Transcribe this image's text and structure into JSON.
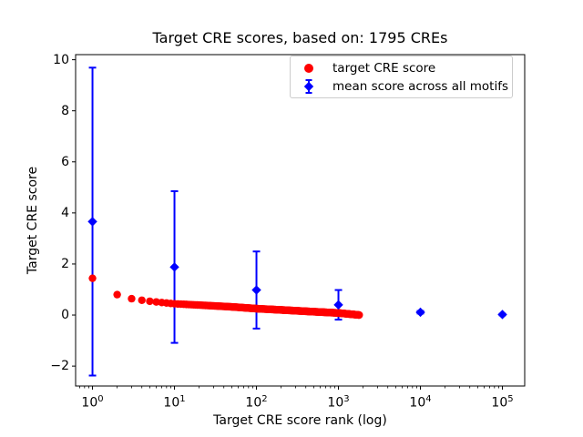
{
  "figure": {
    "title": "Target CRE scores, based on: 1795 CREs",
    "xlabel": "Target CRE score rank (log)",
    "ylabel": "Target CRE score"
  },
  "colors": {
    "target_series": "#ff0000",
    "mean_series": "#0000ff",
    "axis": "#000000",
    "text": "#000000",
    "legend_border": "#cccccc",
    "background": "#ffffff"
  },
  "legend": {
    "items": [
      {
        "label": "target CRE score",
        "marker": "circle-icon",
        "color": "#ff0000"
      },
      {
        "label": "mean score across all motifs",
        "marker": "diamond-errorbar-icon",
        "color": "#0000ff"
      }
    ]
  },
  "chart_data": {
    "type": "scatter",
    "title": "Target CRE scores, based on: 1795 CREs",
    "xlabel": "Target CRE score rank (log)",
    "ylabel": "Target CRE score",
    "x_scale": "log",
    "grid": false,
    "legend_position": "upper right",
    "xlim_log10": [
      -0.206,
      5.272
    ],
    "ylim": [
      -2.78,
      10.2
    ],
    "x_ticks": [
      {
        "value": 1,
        "label": "10^0"
      },
      {
        "value": 10,
        "label": "10^1"
      },
      {
        "value": 100,
        "label": "10^2"
      },
      {
        "value": 1000,
        "label": "10^3"
      },
      {
        "value": 10000,
        "label": "10^4"
      },
      {
        "value": 100000,
        "label": "10^5"
      }
    ],
    "y_ticks": [
      {
        "value": -2,
        "label": "−2"
      },
      {
        "value": 0,
        "label": "0"
      },
      {
        "value": 2,
        "label": "2"
      },
      {
        "value": 4,
        "label": "4"
      },
      {
        "value": 6,
        "label": "6"
      },
      {
        "value": 8,
        "label": "8"
      },
      {
        "value": 10,
        "label": "10"
      }
    ],
    "series": [
      {
        "name": "target CRE score",
        "type": "scatter",
        "marker": "circle",
        "color": "#ff0000",
        "n_points": 1795,
        "trend_anchors_log10x_y": [
          [
            0,
            1.44
          ],
          [
            0.301,
            0.8
          ],
          [
            0.477,
            0.64
          ],
          [
            0.602,
            0.58
          ],
          [
            0.699,
            0.54
          ],
          [
            0.845,
            0.49
          ],
          [
            1.0,
            0.44
          ],
          [
            1.301,
            0.39
          ],
          [
            1.699,
            0.32
          ],
          [
            2.0,
            0.25
          ],
          [
            2.301,
            0.2
          ],
          [
            2.699,
            0.13
          ],
          [
            3.0,
            0.08
          ],
          [
            3.254,
            0.0
          ]
        ]
      },
      {
        "name": "mean score across all motifs",
        "type": "errorbar",
        "marker": "diamond",
        "color": "#0000ff",
        "points": [
          {
            "x": 1,
            "y": 3.66,
            "yerr": 6.03
          },
          {
            "x": 10,
            "y": 1.88,
            "yerr": 2.97
          },
          {
            "x": 100,
            "y": 0.98,
            "yerr": 1.51
          },
          {
            "x": 1000,
            "y": 0.4,
            "yerr": 0.58
          },
          {
            "x": 10000,
            "y": 0.11,
            "yerr": 0.05
          },
          {
            "x": 100000,
            "y": 0.02,
            "yerr": 0.03
          }
        ]
      }
    ]
  }
}
